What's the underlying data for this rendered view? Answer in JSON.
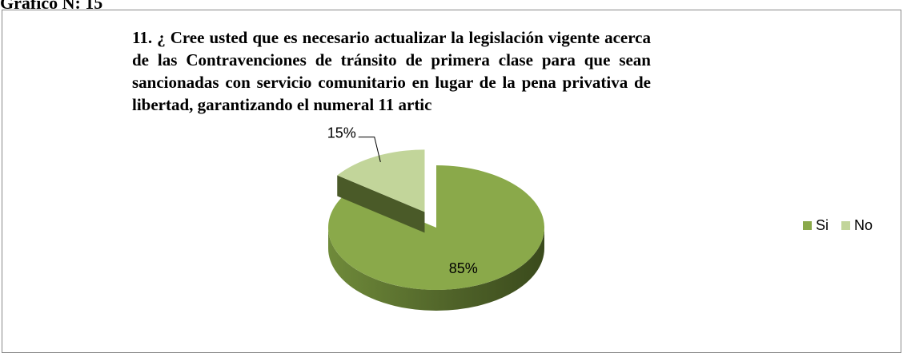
{
  "caption": "Gráfico N: 15",
  "chart_data": {
    "type": "pie",
    "title": "11. ¿ Cree usted que es necesario actualizar la legislación vigente acerca de las Contravenciones de tránsito de primera clase para que sean sancionadas con servicio comunitario en lugar de la pena privativa de libertad, garantizando el numeral 11 artic",
    "categories": [
      "Si",
      "No"
    ],
    "values": [
      85,
      15
    ],
    "value_labels": [
      "85%",
      "15%"
    ],
    "colors": [
      "#8aa94a",
      "#c2d59a"
    ],
    "legend": "right"
  }
}
